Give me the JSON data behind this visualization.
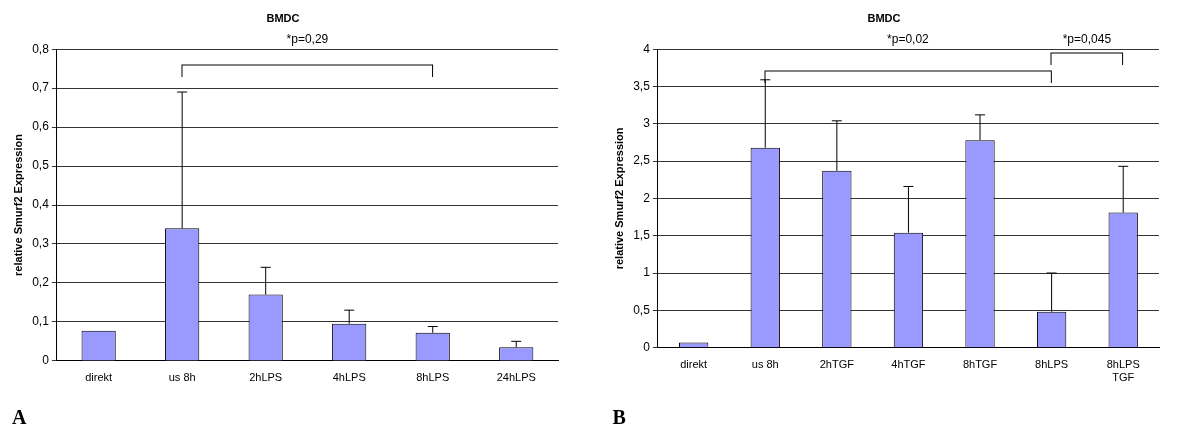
{
  "chart_data": [
    {
      "type": "bar",
      "title": "BMDC",
      "ylabel": "relative Smurf2 Expression",
      "categories": [
        "direkt",
        "us 8h",
        "2hLPS",
        "4hLPS",
        "8hLPS",
        "24hLPS"
      ],
      "values": [
        0.077,
        0.34,
        0.17,
        0.095,
        0.072,
        0.035
      ],
      "errors": [
        null,
        [
          0.34,
          0.69
        ],
        [
          0.17,
          0.24
        ],
        [
          0.095,
          0.13
        ],
        [
          0.072,
          0.088
        ],
        [
          0.035,
          0.05
        ]
      ],
      "color": "#9999ff",
      "ylim": [
        0,
        0.8
      ],
      "yticks": [
        {
          "value": 0,
          "label": "0"
        },
        {
          "value": 0.1,
          "label": "0,1"
        },
        {
          "value": 0.2,
          "label": "0,2"
        },
        {
          "value": 0.3,
          "label": "0,3"
        },
        {
          "value": 0.4,
          "label": "0,4"
        },
        {
          "value": 0.5,
          "label": "0,5"
        },
        {
          "value": 0.6,
          "label": "0,6"
        },
        {
          "value": 0.7,
          "label": "0,7"
        },
        {
          "value": 0.8,
          "label": "0,8"
        }
      ],
      "grid": "y",
      "legend": false,
      "annotations": [
        "*p=0,29",
        "A"
      ]
    },
    {
      "type": "bar",
      "title": "BMDC",
      "ylabel": "relative Smurf2 Expression",
      "categories": [
        "direkt",
        "us 8h",
        "2hTGF",
        "4hTGF",
        "8hTGF",
        "8hLPS",
        "8hLPS TGF"
      ],
      "values": [
        0.07,
        2.68,
        2.37,
        1.54,
        2.78,
        0.48,
        1.81
      ],
      "errors": [
        null,
        [
          2.68,
          3.59
        ],
        [
          2.37,
          3.04
        ],
        [
          1.54,
          2.16
        ],
        [
          2.78,
          3.12
        ],
        [
          0.48,
          1.0
        ],
        [
          1.81,
          2.43
        ]
      ],
      "color": "#9999ff",
      "ylim": [
        0,
        4
      ],
      "yticks": [
        0,
        {
          "value": 0.5,
          "label": "0,5"
        },
        1,
        {
          "value": 1.5,
          "label": "1,5"
        },
        2,
        {
          "value": 2.5,
          "label": "2,5"
        },
        3,
        {
          "value": 3.5,
          "label": "3,5"
        },
        4
      ],
      "grid": "y",
      "legend": false,
      "annotations": [
        "*p=0,02",
        "*p=0,045",
        "B"
      ]
    }
  ]
}
